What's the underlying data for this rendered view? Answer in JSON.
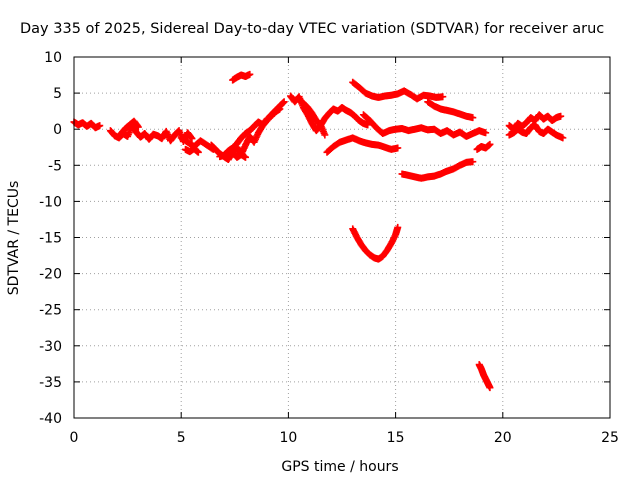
{
  "chart_data": {
    "type": "scatter",
    "title": "Day 335 of 2025, Sidereal Day-to-day VTEC variation (SDTVAR) for receiver aruc",
    "xlabel": "GPS time / hours",
    "ylabel": "SDTVAR / TECUs",
    "xlim": [
      0,
      25
    ],
    "ylim": [
      -40,
      10
    ],
    "xticks": [
      0,
      5,
      10,
      15,
      20,
      25
    ],
    "yticks": [
      10,
      5,
      0,
      -5,
      -10,
      -15,
      -20,
      -25,
      -30,
      -35,
      -40
    ],
    "grid": true,
    "color": "#ff0000",
    "marker": "plus",
    "series": [
      {
        "x": [
          0.0,
          0.2,
          0.4,
          0.6,
          0.8,
          1.0,
          1.2
        ],
        "y": [
          1.0,
          0.6,
          0.9,
          0.4,
          0.8,
          0.2,
          0.5
        ]
      },
      {
        "x": [
          1.7,
          1.9,
          2.1,
          2.3,
          2.5,
          2.7,
          2.9,
          3.1,
          3.3,
          3.5,
          3.7,
          3.9,
          4.1,
          4.3,
          4.5,
          4.7,
          4.9,
          5.1,
          5.3,
          5.5
        ],
        "y": [
          -0.2,
          -0.9,
          -1.2,
          -0.6,
          -1.0,
          0.5,
          -0.4,
          -1.1,
          -0.6,
          -1.4,
          -0.7,
          -0.9,
          -1.3,
          -0.3,
          -1.6,
          -0.8,
          -0.2,
          -1.7,
          -0.5,
          -1.3
        ]
      },
      {
        "x": [
          2.2,
          2.4,
          2.6,
          2.8,
          3.0
        ],
        "y": [
          -0.6,
          0.1,
          0.6,
          1.1,
          0.3
        ]
      },
      {
        "x": [
          5.0,
          5.3,
          5.6,
          5.9,
          6.2,
          6.5
        ],
        "y": [
          -1.2,
          -1.8,
          -2.4,
          -1.6,
          -2.2,
          -2.8
        ]
      },
      {
        "x": [
          5.2,
          5.4,
          5.6,
          5.8
        ],
        "y": [
          -2.8,
          -3.1,
          -2.7,
          -3.2
        ]
      },
      {
        "x": [
          6.4,
          6.6,
          6.8,
          7.0,
          7.2,
          7.4,
          7.6,
          7.8,
          8.0,
          8.2,
          8.4,
          8.6,
          8.8,
          9.0,
          9.2,
          9.4,
          9.6,
          9.8
        ],
        "y": [
          -2.2,
          -2.8,
          -3.4,
          -3.8,
          -4.2,
          -3.2,
          -2.5,
          -3.5,
          -2.2,
          -1.0,
          -1.8,
          -0.5,
          0.5,
          1.2,
          2.0,
          2.6,
          3.2,
          3.8
        ]
      },
      {
        "x": [
          6.8,
          7.0,
          7.2,
          7.4,
          7.6,
          7.8,
          8.0,
          8.2,
          8.4,
          8.6,
          8.8,
          9.0,
          9.2,
          9.4,
          9.6
        ],
        "y": [
          -3.8,
          -3.6,
          -3.0,
          -2.6,
          -2.0,
          -1.2,
          -0.6,
          -0.2,
          0.4,
          1.0,
          0.6,
          1.4,
          1.8,
          2.4,
          2.8
        ]
      },
      {
        "x": [
          7.2,
          7.4,
          7.6,
          7.8,
          8.0
        ],
        "y": [
          -3.8,
          -3.2,
          -3.9,
          -3.5,
          -3.9
        ]
      },
      {
        "x": [
          7.4,
          7.6,
          7.8,
          8.0,
          8.2
        ],
        "y": [
          6.8,
          7.2,
          7.5,
          7.3,
          7.6
        ]
      },
      {
        "x": [
          10.1,
          10.3,
          10.5,
          10.7,
          10.9,
          11.1,
          11.3,
          11.5,
          11.7,
          11.9,
          12.1,
          12.3,
          12.5,
          12.7,
          12.9,
          13.1,
          13.3,
          13.5,
          13.7
        ],
        "y": [
          4.6,
          3.8,
          4.5,
          3.0,
          2.0,
          0.8,
          -0.2,
          0.5,
          1.5,
          2.2,
          2.8,
          2.5,
          3.0,
          2.6,
          2.3,
          1.8,
          1.2,
          0.8,
          0.6
        ]
      },
      {
        "x": [
          10.5,
          10.7,
          10.9,
          11.1,
          11.3,
          11.5,
          11.7
        ],
        "y": [
          4.0,
          3.6,
          3.0,
          2.2,
          1.2,
          0.6,
          -0.8
        ]
      },
      {
        "x": [
          13.0,
          13.3,
          13.6,
          13.9,
          14.2,
          14.5,
          14.8,
          15.1,
          15.4,
          15.7,
          16.0,
          16.3,
          16.6,
          16.9,
          17.2
        ],
        "y": [
          6.5,
          5.8,
          5.0,
          4.6,
          4.4,
          4.6,
          4.7,
          4.9,
          5.3,
          4.8,
          4.2,
          4.7,
          4.6,
          4.4,
          4.5
        ]
      },
      {
        "x": [
          16.5,
          16.8,
          17.1,
          17.4,
          17.7,
          18.0,
          18.3,
          18.6
        ],
        "y": [
          3.8,
          3.2,
          2.8,
          2.6,
          2.4,
          2.1,
          1.8,
          1.6
        ]
      },
      {
        "x": [
          11.8,
          12.1,
          12.4,
          12.7,
          13.0,
          13.3,
          13.6,
          13.9,
          14.2,
          14.5,
          14.8,
          15.1
        ],
        "y": [
          -3.2,
          -2.4,
          -1.8,
          -1.5,
          -1.2,
          -1.6,
          -1.9,
          -2.1,
          -2.2,
          -2.5,
          -2.8,
          -2.6
        ]
      },
      {
        "x": [
          13.5,
          13.8,
          14.1,
          14.4,
          14.7,
          15.0,
          15.3,
          15.6,
          15.9,
          16.2,
          16.5,
          16.8,
          17.1,
          17.4,
          17.7,
          18.0,
          18.3,
          18.6,
          18.9,
          19.2
        ],
        "y": [
          2.0,
          1.2,
          0.2,
          -0.6,
          -0.2,
          0.0,
          0.1,
          -0.2,
          0.0,
          0.2,
          -0.1,
          0.0,
          -0.6,
          -0.2,
          -0.8,
          -0.4,
          -1.0,
          -0.6,
          -0.2,
          -0.5
        ]
      },
      {
        "x": [
          15.3,
          15.6,
          15.9,
          16.2,
          16.5,
          16.8,
          17.1,
          17.4,
          17.7,
          18.0,
          18.3,
          18.6
        ],
        "y": [
          -6.2,
          -6.4,
          -6.6,
          -6.8,
          -6.6,
          -6.5,
          -6.2,
          -5.8,
          -5.5,
          -5.0,
          -4.6,
          -4.5
        ]
      },
      {
        "x": [
          13.0,
          13.2,
          13.4,
          13.6,
          13.8,
          14.0,
          14.2,
          14.4,
          14.6,
          14.8,
          15.0,
          15.1
        ],
        "y": [
          -13.8,
          -15.0,
          -16.0,
          -16.8,
          -17.4,
          -17.8,
          -18.0,
          -17.6,
          -16.8,
          -15.8,
          -14.6,
          -13.6
        ]
      },
      {
        "x": [
          18.8,
          19.0,
          19.2,
          19.4
        ],
        "y": [
          -2.8,
          -2.4,
          -2.6,
          -2.1
        ]
      },
      {
        "x": [
          18.9,
          19.0,
          19.1,
          19.2,
          19.3,
          19.4
        ],
        "y": [
          -32.6,
          -33.2,
          -34.0,
          -34.6,
          -35.2,
          -35.8
        ]
      },
      {
        "x": [
          20.3,
          20.5,
          20.7,
          20.9,
          21.1,
          21.3,
          21.5,
          21.7,
          21.9,
          22.1,
          22.3,
          22.5,
          22.7
        ],
        "y": [
          0.5,
          0.0,
          0.8,
          0.4,
          0.9,
          1.6,
          1.2,
          2.0,
          1.4,
          1.8,
          1.2,
          1.6,
          1.8
        ]
      },
      {
        "x": [
          20.3,
          20.5,
          20.7,
          20.9,
          21.1,
          21.3,
          21.5,
          21.7,
          21.9,
          22.1,
          22.3,
          22.5,
          22.8
        ],
        "y": [
          -0.8,
          -0.5,
          0.0,
          -0.4,
          -0.6,
          0.2,
          0.6,
          -0.3,
          -0.6,
          0.0,
          -0.4,
          -0.8,
          -1.2
        ]
      }
    ]
  }
}
